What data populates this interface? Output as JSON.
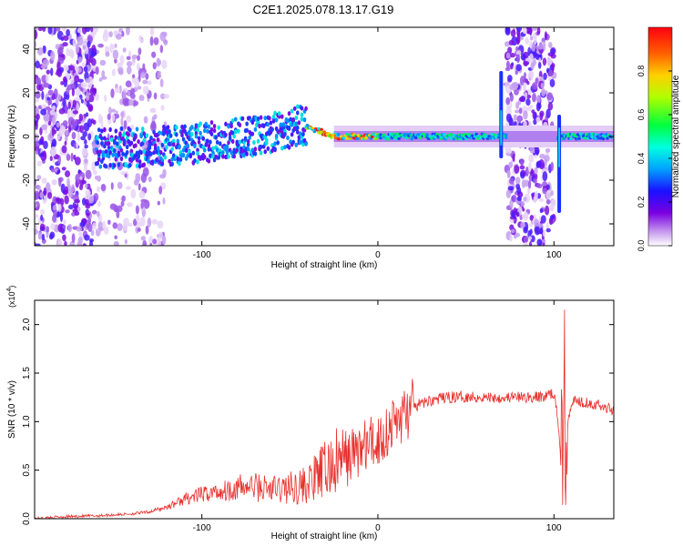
{
  "title": "C2E1.2025.078.13.17.G19",
  "chart_data": [
    {
      "type": "heatmap",
      "xlabel": "Height of straight line (km)",
      "ylabel": "Frequency (Hz)",
      "xlim": [
        -195,
        134
      ],
      "ylim": [
        -50,
        50
      ],
      "xticks": [
        -100,
        0,
        100
      ],
      "yticks": [
        -40,
        -20,
        0,
        20,
        40
      ],
      "colorbar": {
        "label": "Normalized spectral amplitude",
        "range": [
          0,
          1
        ],
        "ticks": [
          "0.0",
          "0.2",
          "0.4",
          "0.6",
          "0.8"
        ]
      },
      "ridge": [
        [
          -160,
          -6
        ],
        [
          -140,
          -5
        ],
        [
          -120,
          -4
        ],
        [
          -100,
          -3
        ],
        [
          -80,
          -1
        ],
        [
          -60,
          2
        ],
        [
          -45,
          5
        ],
        [
          -35,
          3
        ],
        [
          -25,
          0
        ],
        [
          0,
          0
        ],
        [
          70,
          0
        ],
        [
          105,
          0
        ],
        [
          134,
          0
        ]
      ],
      "noise_regions": [
        [
          -195,
          -160
        ],
        [
          -160,
          -120
        ],
        [
          73,
          100
        ]
      ]
    },
    {
      "type": "line",
      "xlabel": "Height of straight line (km)",
      "ylabel": "SNR (10 * v/v)",
      "y_multiplier": "(x10",
      "y_multiplier_exp": "4",
      "y_multiplier_close": ")",
      "xlim": [
        -195,
        134
      ],
      "ylim": [
        0,
        2.25
      ],
      "xticks": [
        -100,
        0,
        100
      ],
      "yticks": [
        "0.0",
        "0.5",
        "1.0",
        "1.5",
        "2.0"
      ],
      "color": "#e8302c",
      "series": [
        {
          "x": [
            -195,
            -180,
            -160,
            -140,
            -130,
            -120,
            -110,
            -100,
            -90,
            -80,
            -70,
            -60,
            -50,
            -40,
            -30,
            -20,
            -10,
            0,
            10,
            20,
            30,
            40,
            50,
            60,
            70,
            80,
            90,
            95,
            100,
            103,
            105,
            106,
            107,
            110,
            120,
            134
          ],
          "y": [
            0.0,
            0.02,
            0.03,
            0.05,
            0.07,
            0.12,
            0.2,
            0.25,
            0.28,
            0.32,
            0.33,
            0.3,
            0.32,
            0.35,
            0.5,
            0.6,
            0.72,
            0.8,
            1.0,
            1.15,
            1.22,
            1.25,
            1.26,
            1.25,
            1.25,
            1.25,
            1.25,
            1.26,
            1.3,
            0.9,
            0.25,
            1.5,
            0.9,
            1.22,
            1.2,
            1.12
          ]
        }
      ]
    }
  ]
}
